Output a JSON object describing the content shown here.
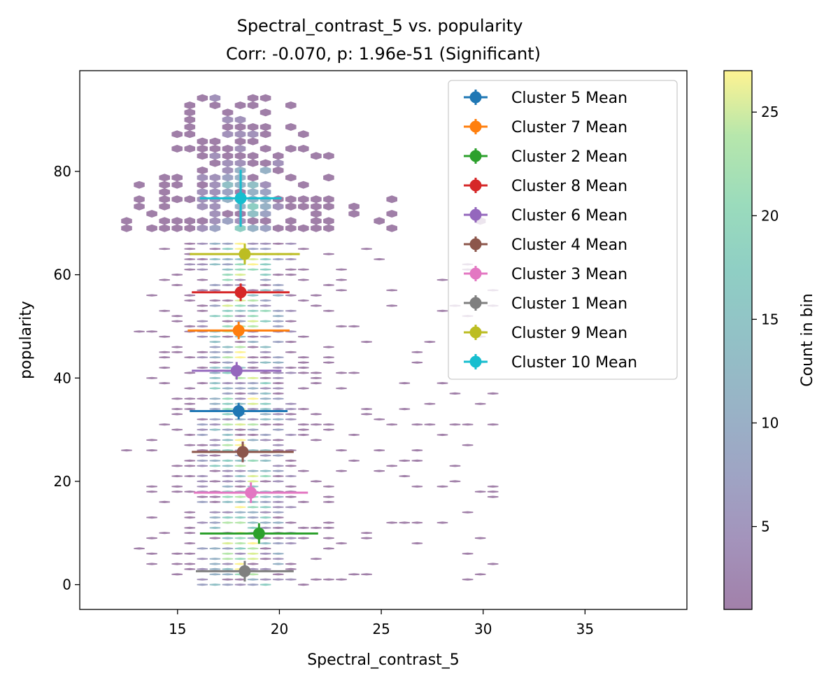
{
  "chart_data": {
    "type": "scatter",
    "title": "Spectral_contrast_5 vs. popularity",
    "subtitle": "Corr: -0.070, p: 1.96e-51 (Significant)",
    "xlabel": "Spectral_contrast_5",
    "ylabel": "popularity",
    "xlim": [
      10.2,
      40.0
    ],
    "ylim": [
      -4.8,
      99.5
    ],
    "x_ticks": [
      15,
      20,
      25,
      30,
      35
    ],
    "y_ticks": [
      0,
      20,
      40,
      60,
      80
    ],
    "grid": false,
    "legend_position": "top-right",
    "colorbar": {
      "label": "Count in bin",
      "min": 1,
      "max": 27,
      "ticks": [
        5,
        10,
        15,
        20,
        25
      ],
      "colormap": "viridis",
      "alpha": 0.5
    },
    "series": [
      {
        "name": "Cluster 5 Mean",
        "color": "#1f77b4",
        "x": 18.0,
        "y": 33.6,
        "xerr": 2.4,
        "yerr": 1.6
      },
      {
        "name": "Cluster 7 Mean",
        "color": "#ff7f0e",
        "x": 18.0,
        "y": 49.2,
        "xerr": 2.5,
        "yerr": 1.7
      },
      {
        "name": "Cluster 2 Mean",
        "color": "#2ca02c",
        "x": 19.0,
        "y": 9.9,
        "xerr": 2.9,
        "yerr": 2.0
      },
      {
        "name": "Cluster 8 Mean",
        "color": "#d62728",
        "x": 18.1,
        "y": 56.6,
        "xerr": 2.4,
        "yerr": 1.7
      },
      {
        "name": "Cluster 6 Mean",
        "color": "#9467bd",
        "x": 17.9,
        "y": 41.4,
        "xerr": 2.2,
        "yerr": 1.7
      },
      {
        "name": "Cluster 4 Mean",
        "color": "#8c564b",
        "x": 18.2,
        "y": 25.7,
        "xerr": 2.5,
        "yerr": 2.0
      },
      {
        "name": "Cluster 3 Mean",
        "color": "#e377c2",
        "x": 18.6,
        "y": 17.8,
        "xerr": 2.8,
        "yerr": 2.0
      },
      {
        "name": "Cluster 1 Mean",
        "color": "#7f7f7f",
        "x": 18.3,
        "y": 2.6,
        "xerr": 2.4,
        "yerr": 2.0
      },
      {
        "name": "Cluster 9 Mean",
        "color": "#bcbd22",
        "x": 18.3,
        "y": 64.0,
        "xerr": 2.7,
        "yerr": 2.0
      },
      {
        "name": "Cluster 10 Mean",
        "color": "#17becf",
        "x": 18.1,
        "y": 74.8,
        "xerr": 2.0,
        "yerr": 5.5
      }
    ]
  }
}
